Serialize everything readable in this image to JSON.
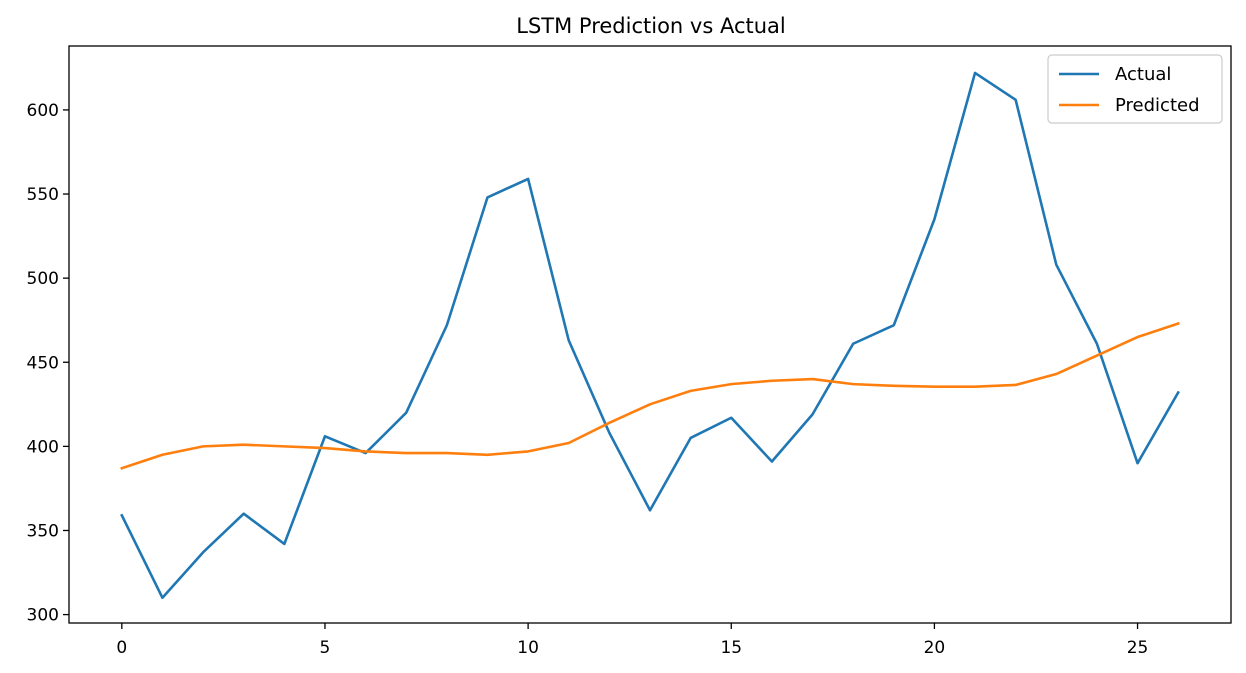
{
  "chart_data": {
    "type": "line",
    "title": "LSTM Prediction vs Actual",
    "xlabel": "",
    "ylabel": "",
    "x": [
      0,
      1,
      2,
      3,
      4,
      5,
      6,
      7,
      8,
      9,
      10,
      11,
      12,
      13,
      14,
      15,
      16,
      17,
      18,
      19,
      20,
      21,
      22,
      23,
      24,
      25,
      26
    ],
    "xlim": [
      -1.3,
      27.3
    ],
    "ylim": [
      295,
      638
    ],
    "xticks": [
      0,
      5,
      10,
      15,
      20,
      25
    ],
    "xtick_labels": [
      "0",
      "5",
      "10",
      "15",
      "20",
      "25"
    ],
    "yticks": [
      300,
      350,
      400,
      450,
      500,
      550,
      600
    ],
    "ytick_labels": [
      "300",
      "350",
      "400",
      "450",
      "500",
      "550",
      "600"
    ],
    "grid": false,
    "legend_position": "top-right",
    "series": [
      {
        "name": "Actual",
        "color": "#1f77b4",
        "values": [
          359,
          310,
          337,
          360,
          342,
          406,
          396,
          420,
          472,
          548,
          559,
          463,
          408,
          362,
          405,
          417,
          391,
          419,
          461,
          472,
          535,
          622,
          606,
          508,
          461,
          390,
          432
        ]
      },
      {
        "name": "Predicted",
        "color": "#ff7f0e",
        "values": [
          387,
          395,
          400,
          401,
          400,
          399,
          397,
          396,
          396,
          395,
          397,
          402,
          414,
          425,
          433,
          437,
          439,
          440,
          437,
          436,
          435.5,
          435.5,
          436.5,
          443,
          454,
          465,
          473
        ]
      }
    ]
  }
}
